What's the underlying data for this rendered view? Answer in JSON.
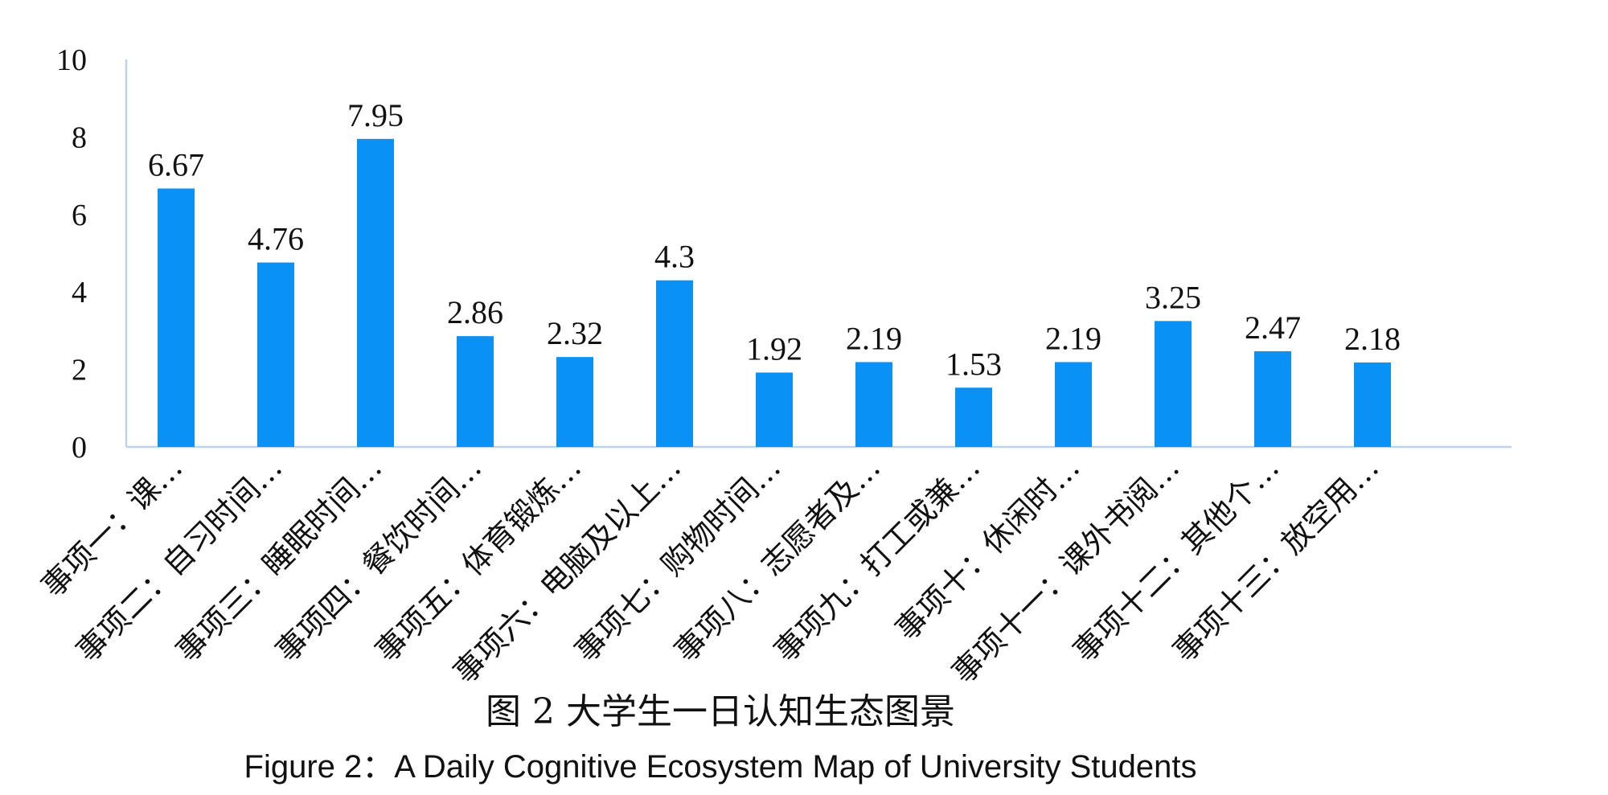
{
  "chart_data": {
    "type": "bar",
    "categories": [
      "事项一：课…",
      "事项二：自习时间…",
      "事项三：睡眠时间…",
      "事项四：餐饮时间…",
      "事项五：体育锻炼…",
      "事项六：电脑及以上…",
      "事项七：购物时间…",
      "事项八：志愿者及…",
      "事项九：打工或兼…",
      "事项十：休闲时…",
      "事项十一：课外书阅…",
      "事项十二：其他个…",
      "事项十三：放空用…"
    ],
    "values": [
      6.67,
      4.76,
      7.95,
      2.86,
      2.32,
      4.3,
      1.92,
      2.19,
      1.53,
      2.19,
      3.25,
      2.47,
      2.18
    ],
    "value_labels": [
      "6.67",
      "4.76",
      "7.95",
      "2.86",
      "2.32",
      "4.3",
      "1.92",
      "2.19",
      "1.53",
      "2.19",
      "3.25",
      "2.47",
      "2.18"
    ],
    "ylim": [
      0,
      10
    ],
    "yticks": [
      "0",
      "2",
      "4",
      "6",
      "8",
      "10"
    ],
    "grid": false,
    "legend": "none",
    "bar_color": "#0a91f5",
    "axis_color": "#bcd3ea"
  },
  "caption": {
    "chinese": "图 2  大学生一日认知生态图景",
    "english": "Figure 2：A Daily Cognitive Ecosystem Map of University Students"
  }
}
